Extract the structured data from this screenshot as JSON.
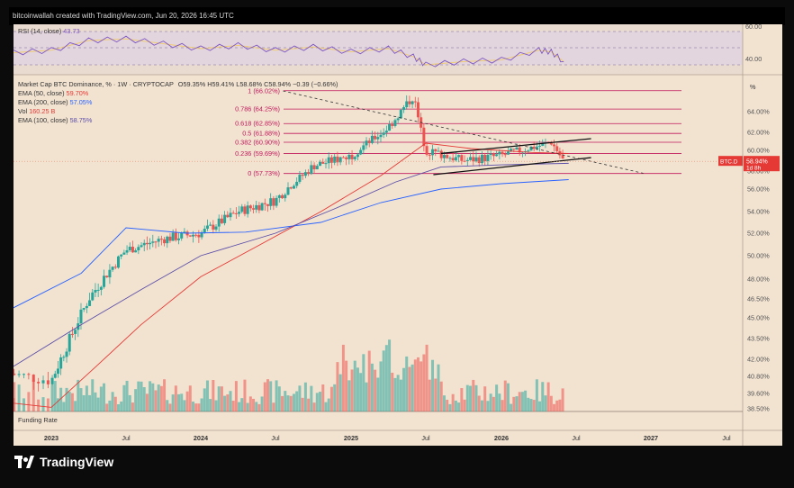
{
  "header": {
    "text": "bitcoinwallah created with TradingView.com, Jun 20, 2026 16:45 UTC"
  },
  "rsi": {
    "label": "RSI (14, close)",
    "value": "43.73",
    "value_color": "#7e57c2",
    "axis_labels": [
      "60.00",
      "40.00"
    ]
  },
  "legend": {
    "title": "Market Cap BTC Dominance, % · 1W · CRYPTOCAP",
    "ohlc": "O59.35% H59.41% L58.68% C58.94% −0.39 (−0.66%)",
    "rows": [
      {
        "name": "EMA (50, close)",
        "value": "59.70%",
        "color": "#e53935"
      },
      {
        "name": "EMA (200, close)",
        "value": "57.05%",
        "color": "#2962ff"
      },
      {
        "name": "Vol",
        "value": "160.25 B",
        "color": "#e53935"
      },
      {
        "name": "EMA (100, close)",
        "value": "58.75%",
        "color": "#5c4ea8"
      }
    ]
  },
  "fib": [
    {
      "ratio": "1",
      "level": "(66.02%)",
      "value": 66.02
    },
    {
      "ratio": "0.786",
      "level": "(64.25%)",
      "value": 64.25
    },
    {
      "ratio": "0.618",
      "level": "(62.85%)",
      "value": 62.85
    },
    {
      "ratio": "0.5",
      "level": "(61.88%)",
      "value": 61.88
    },
    {
      "ratio": "0.382",
      "level": "(60.90%)",
      "value": 60.9
    },
    {
      "ratio": "0.236",
      "level": "(59.69%)",
      "value": 59.69
    },
    {
      "ratio": "0",
      "level": "(57.73%)",
      "value": 57.73
    }
  ],
  "price_axis": {
    "unit": "%",
    "ticks": [
      "64.00%",
      "62.00%",
      "60.00%",
      "58.00%",
      "56.00%",
      "54.00%",
      "52.00%",
      "50.00%",
      "48.00%",
      "46.50%",
      "45.00%",
      "43.50%",
      "42.00%",
      "40.80%",
      "39.60%",
      "38.50%"
    ],
    "tick_values": [
      64.0,
      62.0,
      60.0,
      58.0,
      56.0,
      54.0,
      52.0,
      50.0,
      48.0,
      46.5,
      45.0,
      43.5,
      42.0,
      40.8,
      39.6,
      38.5
    ],
    "badge_symbol": "BTC.D",
    "badge_value": "58.94%",
    "badge_countdown": "1d 8h",
    "badge_color": "#e53935"
  },
  "time_axis": {
    "labels": [
      "2023",
      "Jul",
      "2024",
      "Jul",
      "2025",
      "Jul",
      "2026",
      "Jul",
      "2027",
      "Jul"
    ],
    "bold": [
      true,
      false,
      true,
      false,
      true,
      false,
      true,
      false,
      true,
      false
    ]
  },
  "funding_rate_label": "Funding Rate",
  "brand": {
    "name": "TradingView"
  },
  "colors": {
    "background": "#f2e3d1",
    "up": "#26a69a",
    "down": "#ef5350",
    "fib_line": "#c2185b",
    "ema50": "#e53935",
    "ema200": "#2962ff",
    "ema100": "#5c4ea8",
    "rsi": "#7e57c2",
    "rsi_ma": "#f2c94c"
  },
  "chart_data": {
    "type": "line",
    "x": [
      "2022-11",
      "2023-01",
      "2023-04",
      "2023-07",
      "2023-10",
      "2024-01",
      "2024-04",
      "2024-07",
      "2024-10",
      "2025-01",
      "2025-04",
      "2025-06",
      "2025-07",
      "2025-10",
      "2026-01",
      "2026-04",
      "2026-05",
      "2026-06"
    ],
    "series": [
      {
        "name": "",
        "values": [
          41.0,
          40.5,
          46.5,
          50.5,
          51.5,
          52.0,
          54.0,
          55.0,
          58.5,
          59.5,
          62.5,
          65.5,
          60.0,
          59.0,
          59.5,
          60.5,
          60.9,
          58.94
        ]
      }
    ],
    "ylim": [
      38.5,
      66.0
    ]
  }
}
